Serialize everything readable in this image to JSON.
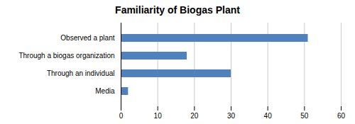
{
  "chart_data": {
    "type": "bar",
    "orientation": "horizontal",
    "title": "Familiarity of Biogas Plant",
    "categories": [
      "Media",
      "Through an individual",
      "Through a biogas organization",
      "Observed a plant"
    ],
    "values": [
      2,
      30,
      18,
      51
    ],
    "color": "#4F81BD",
    "xlim": [
      0,
      60
    ],
    "xticks": [
      0,
      10,
      20,
      30,
      40,
      50,
      60
    ],
    "grid": true
  }
}
